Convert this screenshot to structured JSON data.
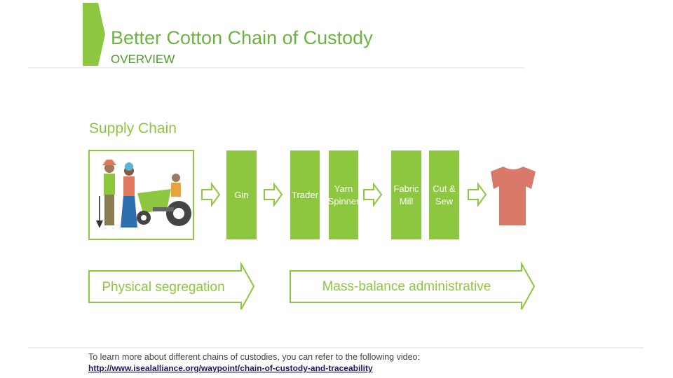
{
  "header": {
    "title": "Better Cotton Chain of Custody",
    "subtitle": "OVERVIEW"
  },
  "diagram": {
    "title": "Supply Chain",
    "stages": [
      [
        "Gin"
      ],
      [
        "Trader"
      ],
      [
        "Yarn",
        "Spinner"
      ],
      [
        "Fabric",
        "Mill"
      ],
      [
        "Cut &",
        "Sew"
      ]
    ],
    "arrows": [
      "Physical segregation",
      "Mass-balance administrative"
    ]
  },
  "footer": {
    "text": "To learn more about different chains of custodies, you can refer to the following video:",
    "link": "http://www.isealalliance.org/waypoint/chain-of-custody-and-traceability"
  }
}
